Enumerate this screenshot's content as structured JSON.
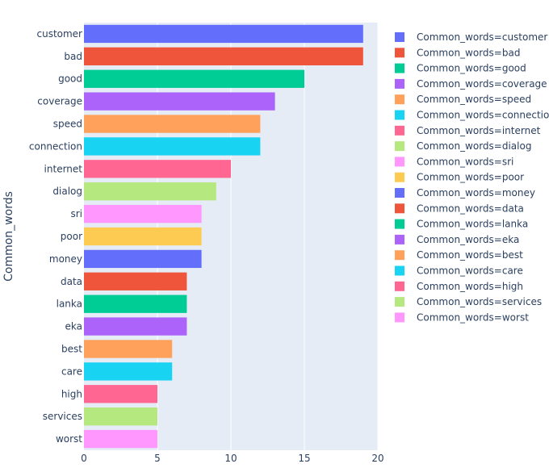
{
  "chart_data": {
    "type": "bar",
    "orientation": "horizontal",
    "ylabel": "Common_words",
    "xlabel": "",
    "xlim": [
      0,
      20
    ],
    "xticks": [
      0,
      5,
      10,
      15,
      20
    ],
    "grid": true,
    "legend_position": "right",
    "categories": [
      "customer",
      "bad",
      "good",
      "coverage",
      "speed",
      "connection",
      "internet",
      "dialog",
      "sri",
      "poor",
      "money",
      "data",
      "lanka",
      "eka",
      "best",
      "care",
      "high",
      "services",
      "worst"
    ],
    "values": [
      19,
      19,
      15,
      13,
      12,
      12,
      10,
      9,
      8,
      8,
      8,
      7,
      7,
      7,
      6,
      6,
      5,
      5,
      5
    ],
    "colors": [
      "#636efa",
      "#EF553B",
      "#00cc96",
      "#ab63fa",
      "#FFA15A",
      "#19d3f3",
      "#FF6692",
      "#B6E880",
      "#FF97FF",
      "#FECB52",
      "#636efa",
      "#EF553B",
      "#00cc96",
      "#ab63fa",
      "#FFA15A",
      "#19d3f3",
      "#FF6692",
      "#B6E880",
      "#FF97FF"
    ],
    "legend_entries": [
      "Common_words=customer",
      "Common_words=bad",
      "Common_words=good",
      "Common_words=coverage",
      "Common_words=speed",
      "Common_words=connection",
      "Common_words=internet",
      "Common_words=dialog",
      "Common_words=sri",
      "Common_words=poor",
      "Common_words=money",
      "Common_words=data",
      "Common_words=lanka",
      "Common_words=eka",
      "Common_words=best",
      "Common_words=care",
      "Common_words=high",
      "Common_words=services",
      "Common_words=worst"
    ]
  }
}
